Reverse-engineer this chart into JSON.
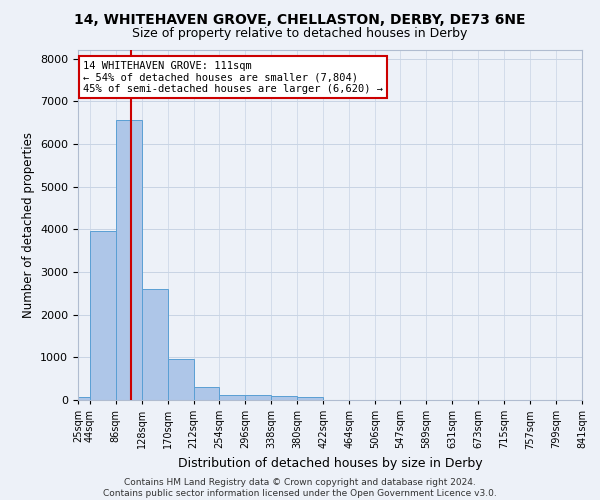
{
  "title": "14, WHITEHAVEN GROVE, CHELLASTON, DERBY, DE73 6NE",
  "subtitle": "Size of property relative to detached houses in Derby",
  "xlabel": "Distribution of detached houses by size in Derby",
  "ylabel": "Number of detached properties",
  "footer_line1": "Contains HM Land Registry data © Crown copyright and database right 2024.",
  "footer_line2": "Contains public sector information licensed under the Open Government Licence v3.0.",
  "bin_edges": [
    25,
    44,
    86,
    128,
    170,
    212,
    254,
    296,
    338,
    380,
    422,
    464,
    506,
    547,
    589,
    631,
    673,
    715,
    757,
    799,
    841
  ],
  "bar_heights": [
    75,
    3950,
    6550,
    2600,
    950,
    300,
    120,
    110,
    100,
    75,
    0,
    0,
    0,
    0,
    0,
    0,
    0,
    0,
    0,
    0
  ],
  "bar_color": "#aec6e8",
  "bar_edgecolor": "#5a9fd4",
  "grid_color": "#c8d4e4",
  "background_color": "#edf1f8",
  "vline_x": 111,
  "vline_color": "#cc0000",
  "annotation_line1": "14 WHITEHAVEN GROVE: 111sqm",
  "annotation_line2": "← 54% of detached houses are smaller (7,804)",
  "annotation_line3": "45% of semi-detached houses are larger (6,620) →",
  "annotation_box_edgecolor": "#cc0000",
  "annotation_bg": "#ffffff",
  "ylim": [
    0,
    8200
  ],
  "yticks": [
    0,
    1000,
    2000,
    3000,
    4000,
    5000,
    6000,
    7000,
    8000
  ]
}
